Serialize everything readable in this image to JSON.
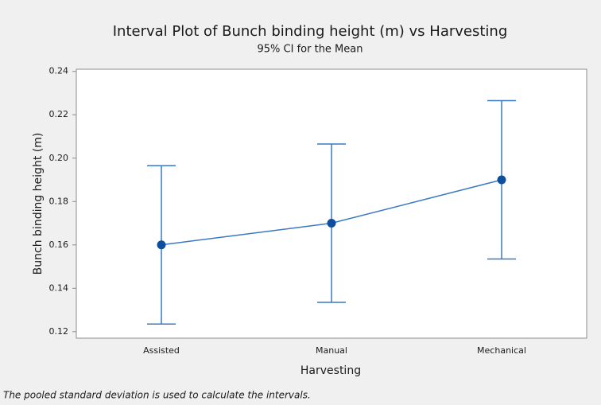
{
  "chart_data": {
    "type": "interval",
    "title": "Interval Plot of Bunch binding height (m) vs Harvesting",
    "subtitle": "95% CI for the Mean",
    "x_label": "Harvesting",
    "y_label": "Bunch binding height (m)",
    "footnote": "The pooled standard deviation is used to calculate the intervals.",
    "categories": [
      "Assisted",
      "Manual",
      "Mechanical"
    ],
    "values": [
      0.16,
      0.17,
      0.19
    ],
    "ci_low": [
      0.1235,
      0.1335,
      0.1535
    ],
    "ci_high": [
      0.1965,
      0.2065,
      0.2265
    ],
    "color": "#3a78c2",
    "point_color": "#0b4f9e",
    "ylim": [
      0.117,
      0.241
    ],
    "yticks": [
      0.12,
      0.14,
      0.16,
      0.18,
      {
        "value": 0.2,
        "label": "0.20"
      },
      0.22,
      0.24
    ],
    "grid": false
  }
}
